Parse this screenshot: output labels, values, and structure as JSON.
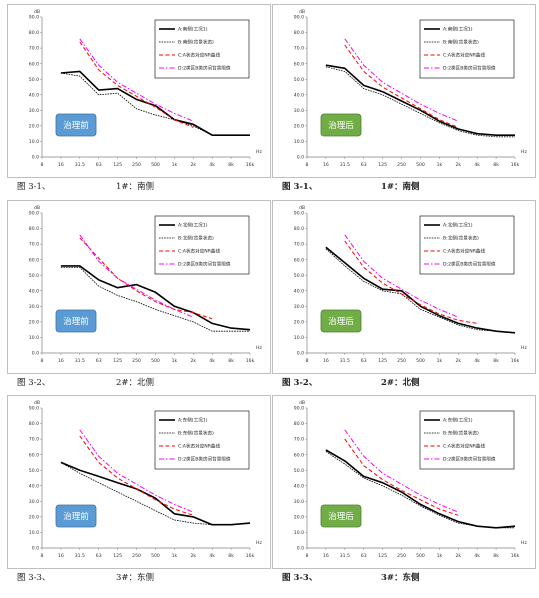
{
  "chart_data": [
    {
      "type": "line",
      "badge": "治理前",
      "caption": {
        "num": "图 3-1、",
        "name": "1#：南侧"
      },
      "y_unit": "dB",
      "x_unit": "Hz",
      "ylim": [
        0,
        90
      ],
      "ytick_labels": [
        "0.0",
        "10.0",
        "20.0",
        "30.0",
        "40.0",
        "50.0",
        "60.0",
        "70.0",
        "80.0",
        "90.0"
      ],
      "x": [
        "8",
        "16",
        "31.5",
        "63",
        "125",
        "250",
        "500",
        "1k",
        "2k",
        "4k",
        "8k",
        "16k"
      ],
      "series": [
        {
          "name": "A:南侧(工况1)",
          "values": [
            null,
            54,
            55,
            43,
            44,
            37,
            33,
            24,
            21,
            14,
            14,
            14
          ]
        },
        {
          "name": "B:南侧(背景状态)",
          "values": [
            null,
            54,
            52,
            40,
            41,
            31,
            27,
            24,
            20,
            14,
            14,
            14
          ]
        },
        {
          "name": "C:A状态对应NR曲线",
          "values": [
            null,
            null,
            74,
            56,
            46,
            39,
            32,
            24,
            19,
            null,
            null,
            null
          ]
        },
        {
          "name": "D:2类区B类房间背景限值",
          "values": [
            null,
            null,
            76,
            59,
            48,
            41,
            34,
            28,
            23,
            null,
            null,
            null
          ]
        }
      ]
    },
    {
      "type": "line",
      "badge": "治理后",
      "caption": {
        "num": "图 3-1、",
        "name": "1#：南侧"
      },
      "y_unit": "dB",
      "x_unit": "Hz",
      "ylim": [
        0,
        90
      ],
      "ytick_labels": [
        "0.0",
        "10.0",
        "20.0",
        "30.0",
        "40.0",
        "50.0",
        "60.0",
        "70.0",
        "80.0",
        "90.0"
      ],
      "x": [
        "8",
        "16",
        "31.5",
        "63",
        "125",
        "250",
        "500",
        "1k",
        "2k",
        "4k",
        "8k",
        "16k"
      ],
      "series": [
        {
          "name": "A:南侧(工况1)",
          "values": [
            null,
            59,
            57,
            46,
            42,
            36,
            30,
            23,
            18,
            15,
            14,
            14
          ]
        },
        {
          "name": "B:南侧(背景状态)",
          "values": [
            null,
            58,
            55,
            44,
            40,
            34,
            28,
            22,
            17,
            14,
            13,
            13
          ]
        },
        {
          "name": "C:A状态对应NR曲线",
          "values": [
            null,
            null,
            72,
            55,
            45,
            38,
            31,
            24,
            19,
            null,
            null,
            null
          ]
        },
        {
          "name": "D:2类区B类房间背景限值",
          "values": [
            null,
            null,
            76,
            59,
            48,
            41,
            34,
            28,
            23,
            null,
            null,
            null
          ]
        }
      ]
    },
    {
      "type": "line",
      "badge": "治理前",
      "caption": {
        "num": "图 3-2、",
        "name": "2#：北侧"
      },
      "y_unit": "dB",
      "x_unit": "Hz",
      "ylim": [
        0,
        90
      ],
      "ytick_labels": [
        "0.0",
        "10.0",
        "20.0",
        "30.0",
        "40.0",
        "50.0",
        "60.0",
        "70.0",
        "80.0",
        "90.0"
      ],
      "x": [
        "8",
        "16",
        "31.5",
        "63",
        "125",
        "250",
        "500",
        "1k",
        "2k",
        "4k",
        "8k",
        "16k"
      ],
      "series": [
        {
          "name": "A:北侧(工况1)",
          "values": [
            null,
            56,
            56,
            47,
            42,
            44,
            39,
            30,
            26,
            19,
            16,
            15
          ]
        },
        {
          "name": "B:北侧(背景状态)",
          "values": [
            null,
            55,
            55,
            43,
            37,
            33,
            28,
            24,
            20,
            14,
            14,
            14
          ]
        },
        {
          "name": "C:A状态对应NR曲线",
          "values": [
            null,
            null,
            74,
            61,
            48,
            40,
            33,
            28,
            26,
            22,
            null,
            null
          ]
        },
        {
          "name": "D:2类区B类房间背景限值",
          "values": [
            null,
            null,
            76,
            59,
            48,
            41,
            34,
            28,
            23,
            null,
            null,
            null
          ]
        }
      ]
    },
    {
      "type": "line",
      "badge": "治理后",
      "caption": {
        "num": "图 3-2、",
        "name": "2#：北侧"
      },
      "y_unit": "dB",
      "x_unit": "Hz",
      "ylim": [
        0,
        90
      ],
      "ytick_labels": [
        "0.0",
        "10.0",
        "20.0",
        "30.0",
        "40.0",
        "50.0",
        "60.0",
        "70.0",
        "80.0",
        "90.0"
      ],
      "x": [
        "8",
        "16",
        "31.5",
        "63",
        "125",
        "250",
        "500",
        "1k",
        "2k",
        "4k",
        "8k",
        "16k"
      ],
      "series": [
        {
          "name": "A:北侧(工况1)",
          "values": [
            null,
            68,
            58,
            48,
            41,
            40,
            30,
            24,
            19,
            16,
            14,
            13
          ]
        },
        {
          "name": "B:北侧(背景状态)",
          "values": [
            null,
            67,
            56,
            46,
            40,
            38,
            28,
            23,
            18,
            15,
            14,
            13
          ]
        },
        {
          "name": "C:A状态对应NR曲线",
          "values": [
            null,
            null,
            72,
            55,
            45,
            38,
            31,
            25,
            21,
            19,
            null,
            null
          ]
        },
        {
          "name": "D:2类区B类房间背景限值",
          "values": [
            null,
            null,
            76,
            59,
            48,
            41,
            34,
            28,
            23,
            null,
            null,
            null
          ]
        }
      ]
    },
    {
      "type": "line",
      "badge": "治理前",
      "caption": {
        "num": "图 3-3、",
        "name": "3#：东侧"
      },
      "y_unit": "dB",
      "x_unit": "Hz",
      "ylim": [
        0,
        90
      ],
      "ytick_labels": [
        "0.0",
        "10.0",
        "20.0",
        "30.0",
        "40.0",
        "50.0",
        "60.0",
        "70.0",
        "80.0",
        "90.0"
      ],
      "x": [
        "8",
        "16",
        "31.5",
        "63",
        "125",
        "250",
        "500",
        "1k",
        "2k",
        "4k",
        "8k",
        "16k"
      ],
      "series": [
        {
          "name": "A:东侧(工况1)",
          "values": [
            null,
            55,
            50,
            46,
            42,
            38,
            32,
            22,
            20,
            15,
            15,
            16
          ]
        },
        {
          "name": "B:东侧(背景状态)",
          "values": [
            null,
            55,
            48,
            42,
            36,
            30,
            24,
            18,
            16,
            15,
            15,
            16
          ]
        },
        {
          "name": "C:A状态对应NR曲线",
          "values": [
            null,
            null,
            72,
            55,
            45,
            38,
            31,
            25,
            21,
            null,
            null,
            null
          ]
        },
        {
          "name": "D:2类区B类房间背景限值",
          "values": [
            null,
            null,
            76,
            59,
            48,
            41,
            34,
            28,
            23,
            null,
            null,
            null
          ]
        }
      ]
    },
    {
      "type": "line",
      "badge": "治理后",
      "caption": {
        "num": "图 3-3、",
        "name": "3#：东侧"
      },
      "y_unit": "dB",
      "x_unit": "Hz",
      "ylim": [
        0,
        90
      ],
      "ytick_labels": [
        "0.0",
        "10.0",
        "20.0",
        "30.0",
        "40.0",
        "50.0",
        "60.0",
        "70.0",
        "80.0",
        "90.0"
      ],
      "x": [
        "8",
        "16",
        "31.5",
        "63",
        "125",
        "250",
        "500",
        "1k",
        "2k",
        "4k",
        "8k",
        "16k"
      ],
      "series": [
        {
          "name": "A:东侧(工况1)",
          "values": [
            null,
            63,
            56,
            46,
            42,
            36,
            28,
            22,
            17,
            14,
            13,
            14
          ]
        },
        {
          "name": "B:东侧(背景状态)",
          "values": [
            null,
            62,
            54,
            45,
            40,
            34,
            27,
            21,
            16,
            14,
            13,
            13
          ]
        },
        {
          "name": "C:A状态对应NR曲线",
          "values": [
            null,
            null,
            70,
            53,
            44,
            37,
            31,
            25,
            21,
            null,
            null,
            null
          ]
        },
        {
          "name": "D:2类区B类房间背景限值",
          "values": [
            null,
            null,
            76,
            59,
            48,
            41,
            34,
            28,
            23,
            null,
            null,
            null
          ]
        }
      ]
    }
  ],
  "colors": {
    "series_a": "#000000",
    "series_b": "#000000",
    "series_c": "#ff0000",
    "series_d": "#ff00ff",
    "badge_before": "#5b9bd5",
    "badge_after": "#70ad47"
  }
}
